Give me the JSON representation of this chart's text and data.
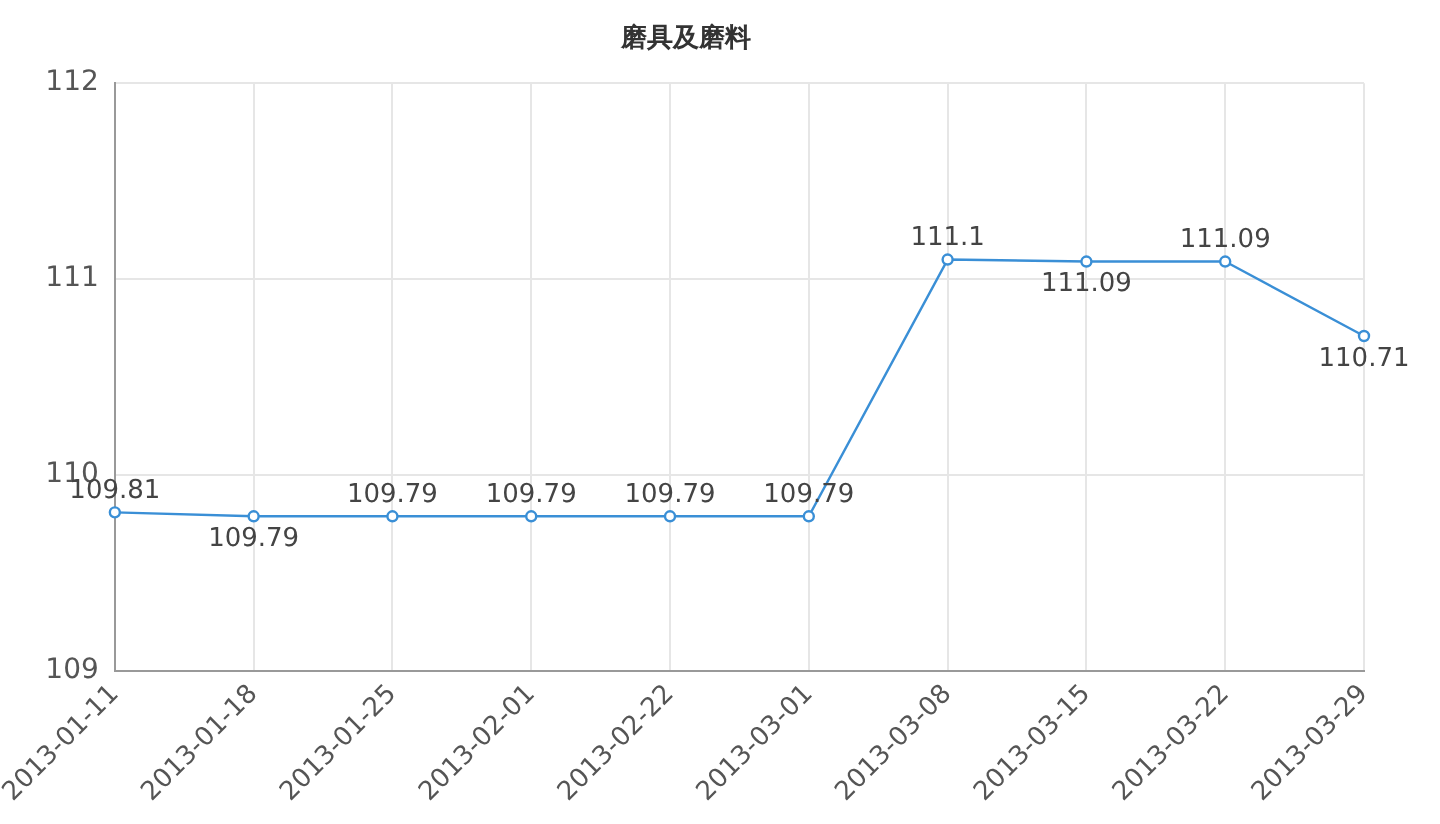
{
  "chart_data": {
    "type": "line",
    "title": "磨具及磨料",
    "categories": [
      "2013-01-11",
      "2013-01-18",
      "2013-01-25",
      "2013-02-01",
      "2013-02-22",
      "2013-03-01",
      "2013-03-08",
      "2013-03-15",
      "2013-03-22",
      "2013-03-29"
    ],
    "series": [
      {
        "color": "#3a8fd6",
        "values": [
          109.81,
          109.79,
          109.79,
          109.79,
          109.79,
          109.79,
          111.1,
          111.09,
          111.09,
          110.71
        ]
      }
    ],
    "ylim": [
      109,
      112
    ],
    "yticks": [
      109,
      110,
      111,
      112
    ],
    "grid": true,
    "legend": false,
    "marker": "circle",
    "line_style": "solid",
    "data_labels": true
  }
}
